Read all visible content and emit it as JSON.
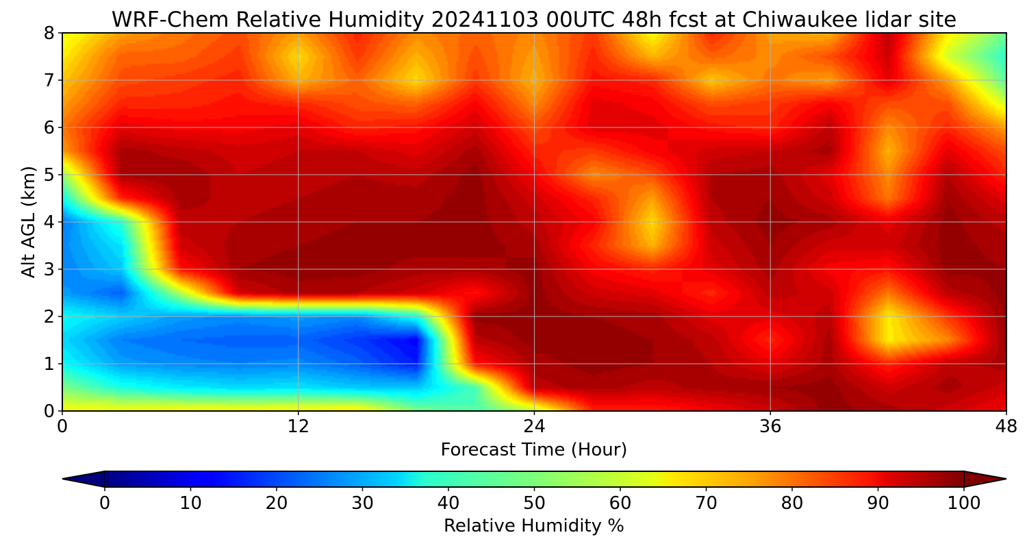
{
  "chart_data": {
    "type": "heatmap",
    "title": "WRF-Chem Relative Humidity 20241103 00UTC 48h fcst at Chiwaukee lidar site",
    "xlabel": "Forecast Time (Hour)",
    "ylabel": "Alt AGL (km)",
    "xlim": [
      0,
      48
    ],
    "ylim": [
      0,
      8
    ],
    "xticks": [
      0,
      12,
      24,
      36,
      48
    ],
    "xtick_labels": [
      "0",
      "12",
      "24",
      "36",
      "48"
    ],
    "yticks": [
      0,
      1,
      2,
      3,
      4,
      5,
      6,
      7,
      8
    ],
    "ytick_labels": [
      "0",
      "1",
      "2",
      "3",
      "4",
      "5",
      "6",
      "7",
      "8"
    ],
    "grid": true,
    "colorbar": {
      "label": "Relative Humidity %",
      "min": 0,
      "max": 100,
      "ticks": [
        0,
        10,
        20,
        30,
        40,
        50,
        60,
        70,
        80,
        90,
        100
      ],
      "tick_labels": [
        "0",
        "10",
        "20",
        "30",
        "40",
        "50",
        "60",
        "70",
        "80",
        "90",
        "100"
      ],
      "colormap": "jet",
      "extend": "both",
      "placement": "bottom"
    },
    "x": [
      0,
      3,
      6,
      9,
      12,
      15,
      18,
      21,
      24,
      27,
      30,
      33,
      36,
      39,
      42,
      45,
      48
    ],
    "y": [
      0,
      0.5,
      1,
      1.5,
      2,
      2.5,
      3,
      3.5,
      4,
      4.5,
      5,
      5.5,
      6,
      6.5,
      7,
      7.5,
      8
    ],
    "z": [
      [
        62,
        64,
        64,
        64,
        64,
        66,
        50,
        45,
        55,
        84,
        84,
        88,
        92,
        98,
        96,
        92,
        88
      ],
      [
        50,
        40,
        36,
        34,
        35,
        32,
        32,
        45,
        94,
        96,
        94,
        96,
        97,
        98,
        92,
        96,
        92
      ],
      [
        38,
        28,
        26,
        25,
        26,
        22,
        15,
        86,
        96,
        98,
        97,
        95,
        90,
        96,
        84,
        94,
        96
      ],
      [
        34,
        25,
        23,
        22,
        22,
        18,
        12,
        94,
        98,
        98,
        97,
        94,
        84,
        96,
        64,
        74,
        98
      ],
      [
        38,
        33,
        28,
        26,
        28,
        26,
        40,
        98,
        98,
        97,
        96,
        90,
        90,
        94,
        64,
        82,
        98
      ],
      [
        28,
        22,
        55,
        92,
        96,
        95,
        92,
        86,
        98,
        92,
        90,
        84,
        94,
        92,
        76,
        94,
        98
      ],
      [
        25,
        32,
        86,
        97,
        98,
        98,
        96,
        96,
        98,
        88,
        84,
        90,
        96,
        88,
        86,
        98,
        97
      ],
      [
        26,
        35,
        92,
        96,
        97,
        98,
        98,
        98,
        96,
        84,
        70,
        92,
        97,
        92,
        92,
        98,
        96
      ],
      [
        24,
        42,
        94,
        95,
        96,
        97,
        97,
        98,
        94,
        88,
        66,
        94,
        98,
        96,
        90,
        98,
        94
      ],
      [
        38,
        84,
        96,
        94,
        95,
        96,
        96,
        98,
        92,
        84,
        72,
        95,
        97,
        92,
        76,
        97,
        90
      ],
      [
        52,
        96,
        97,
        93,
        94,
        95,
        94,
        98,
        88,
        74,
        80,
        95,
        96,
        90,
        74,
        95,
        84
      ],
      [
        72,
        96,
        94,
        92,
        93,
        93,
        90,
        96,
        84,
        82,
        88,
        92,
        93,
        96,
        70,
        90,
        80
      ],
      [
        76,
        90,
        88,
        88,
        90,
        84,
        86,
        92,
        80,
        90,
        90,
        86,
        84,
        94,
        74,
        84,
        72
      ],
      [
        72,
        84,
        84,
        86,
        84,
        80,
        78,
        88,
        74,
        90,
        88,
        80,
        82,
        88,
        80,
        80,
        58
      ],
      [
        68,
        80,
        82,
        84,
        70,
        78,
        66,
        82,
        70,
        86,
        84,
        68,
        76,
        72,
        90,
        72,
        46
      ],
      [
        64,
        78,
        78,
        82,
        66,
        82,
        70,
        80,
        72,
        84,
        70,
        78,
        74,
        80,
        92,
        58,
        42
      ],
      [
        60,
        72,
        76,
        80,
        72,
        84,
        74,
        78,
        74,
        82,
        62,
        84,
        72,
        70,
        94,
        64,
        48
      ]
    ]
  }
}
